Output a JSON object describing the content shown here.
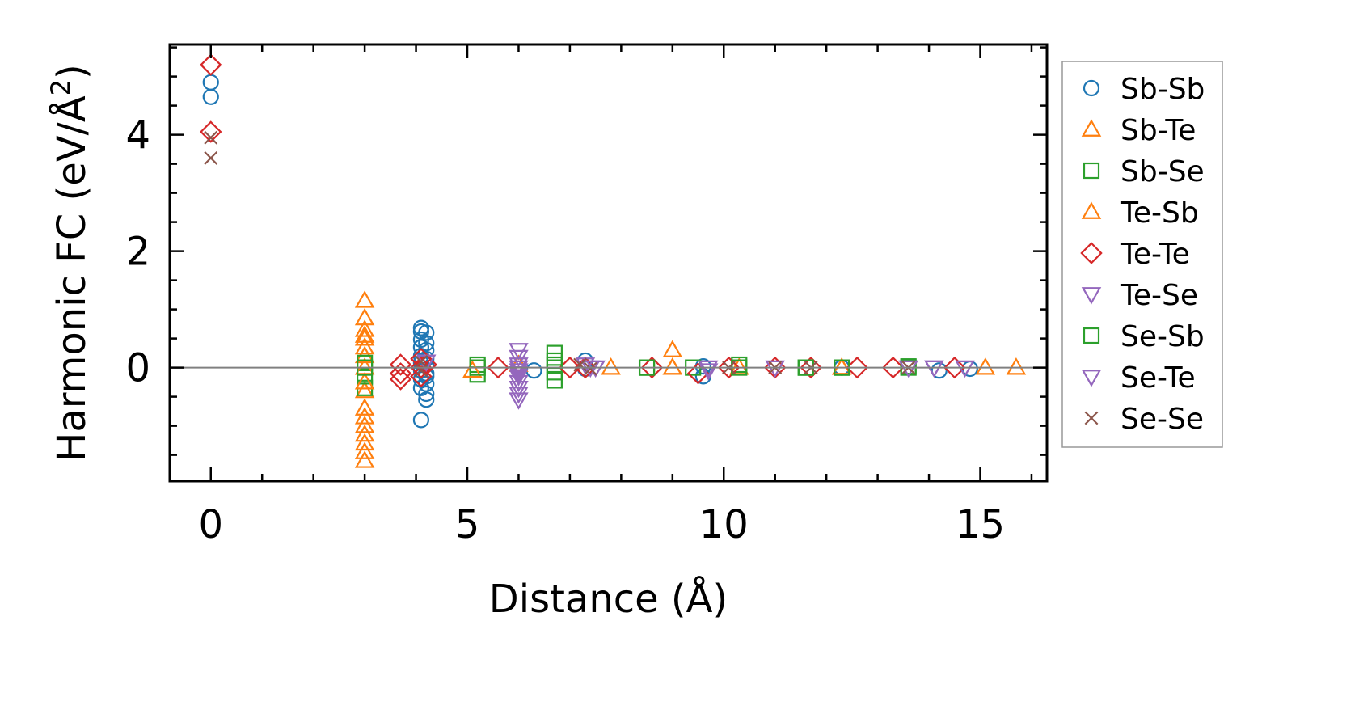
{
  "chart_data": {
    "type": "scatter",
    "title": "",
    "xlabel": "Distance (Å)",
    "ylabel": "Harmonic FC (eV/Å",
    "ylabel_sup": "2",
    "ylabel_close": ")",
    "xlim": [
      -0.8,
      16.3
    ],
    "ylim": [
      -1.95,
      5.55
    ],
    "xticks": [
      0,
      5,
      10,
      15
    ],
    "xtick_labels": [
      "0",
      "5",
      "10",
      "15"
    ],
    "yticks": [
      0,
      2,
      4
    ],
    "ytick_labels": [
      "0",
      "2",
      "4"
    ],
    "grid": false,
    "reference_line_y": 0,
    "legend_position": "right-outside",
    "series": [
      {
        "name": "Sb-Sb",
        "marker": "circle",
        "color": "#1f77b4",
        "x": [
          0,
          0,
          4.1,
          4.1,
          4.1,
          4.1,
          4.1,
          4.1,
          4.1,
          4.1,
          4.1,
          4.1,
          4.2,
          4.2,
          4.2,
          4.2,
          4.2,
          4.2,
          4.2,
          4.2,
          4.2,
          4.2,
          7.3,
          7.3,
          9.6,
          9.6,
          12.3,
          14.2,
          14.8,
          6.3
        ],
        "y": [
          4.9,
          4.65,
          0.68,
          0.62,
          0.48,
          0.35,
          0.2,
          0.08,
          -0.05,
          -0.2,
          -0.35,
          -0.9,
          0.6,
          0.42,
          0.3,
          0.15,
          -0.1,
          -0.28,
          -0.45,
          -0.55,
          0.05,
          -0.15,
          0.12,
          -0.02,
          -0.15,
          0.02,
          0.0,
          -0.05,
          -0.02,
          -0.05
        ]
      },
      {
        "name": "Sb-Te",
        "marker": "triangle-up",
        "color": "#ff7f0e",
        "x": [
          3.0,
          3.0,
          3.0,
          3.0,
          3.0,
          3.0,
          3.0,
          3.0,
          3.0,
          3.0,
          3.0,
          3.0,
          3.0,
          3.0,
          7.8,
          9.0,
          9.0,
          10.3,
          12.3,
          15.1,
          15.7
        ],
        "y": [
          1.15,
          0.85,
          0.65,
          0.5,
          -0.4,
          -0.7,
          -0.85,
          -1.0,
          -1.15,
          -1.3,
          -1.45,
          -1.6,
          0.2,
          0.35,
          0.0,
          0.3,
          0.0,
          0.0,
          0.0,
          0.0,
          0.0
        ]
      },
      {
        "name": "Sb-Se",
        "marker": "square",
        "color": "#2ca02c",
        "x": [
          3.0,
          3.0,
          3.0,
          5.2,
          5.2,
          6.7,
          6.7,
          6.7,
          6.7,
          8.5,
          9.4,
          10.3,
          11.6,
          12.3,
          13.6
        ],
        "y": [
          0.08,
          -0.15,
          -0.35,
          0.05,
          -0.12,
          0.25,
          0.05,
          -0.08,
          -0.22,
          0.0,
          0.0,
          0.05,
          0.0,
          0.0,
          0.02
        ]
      },
      {
        "name": "Te-Sb",
        "marker": "triangle-up",
        "color": "#ff7f0e",
        "x": [
          3.0,
          3.0,
          3.0,
          5.1,
          6.0,
          9.0,
          12.3
        ],
        "y": [
          0.55,
          0.0,
          -0.25,
          -0.05,
          0.05,
          0.0,
          0.0
        ]
      },
      {
        "name": "Te-Te",
        "marker": "diamond",
        "color": "#d62728",
        "x": [
          0,
          0,
          3.7,
          3.7,
          3.7,
          4.1,
          4.1,
          4.1,
          4.2,
          5.6,
          7.0,
          7.3,
          8.6,
          9.5,
          10.1,
          11.0,
          11.7,
          12.6,
          13.3,
          14.5
        ],
        "y": [
          5.2,
          4.05,
          0.05,
          -0.1,
          -0.2,
          0.15,
          0.0,
          -0.15,
          0.05,
          0.0,
          0.0,
          0.0,
          0.0,
          -0.1,
          0.0,
          0.0,
          0.0,
          0.0,
          0.0,
          0.0
        ]
      },
      {
        "name": "Te-Se",
        "marker": "triangle-down",
        "color": "#9467bd",
        "x": [
          6.0,
          6.0,
          6.0,
          6.0,
          6.0,
          6.0,
          6.0,
          6.0,
          6.0,
          7.5,
          9.7,
          14.1,
          14.7
        ],
        "y": [
          0.3,
          0.18,
          0.05,
          -0.05,
          -0.15,
          -0.25,
          -0.35,
          -0.45,
          -0.55,
          0.0,
          -0.05,
          0.0,
          0.0
        ]
      },
      {
        "name": "Se-Sb",
        "marker": "square",
        "color": "#2ca02c",
        "x": [
          3.0,
          5.2,
          6.7,
          8.5,
          10.3,
          11.6,
          12.3,
          13.6
        ],
        "y": [
          0.0,
          0.0,
          0.12,
          0.0,
          0.0,
          0.0,
          0.0,
          0.0
        ]
      },
      {
        "name": "Se-Te",
        "marker": "triangle-down",
        "color": "#9467bd",
        "x": [
          4.2,
          6.0,
          6.0,
          7.3,
          7.4,
          9.7,
          11.0,
          13.6,
          14.1
        ],
        "y": [
          0.1,
          0.0,
          -0.1,
          0.05,
          0.0,
          0.0,
          0.0,
          0.0,
          0.0
        ]
      },
      {
        "name": "Se-Se",
        "marker": "x",
        "color": "#8c564b",
        "x": [
          0,
          0,
          4.1,
          4.1,
          7.2,
          7.4,
          10.1,
          11.0,
          11.7,
          13.6
        ],
        "y": [
          3.95,
          3.6,
          0.1,
          -0.05,
          0.05,
          -0.02,
          0.0,
          0.0,
          0.0,
          0.0
        ]
      }
    ]
  }
}
